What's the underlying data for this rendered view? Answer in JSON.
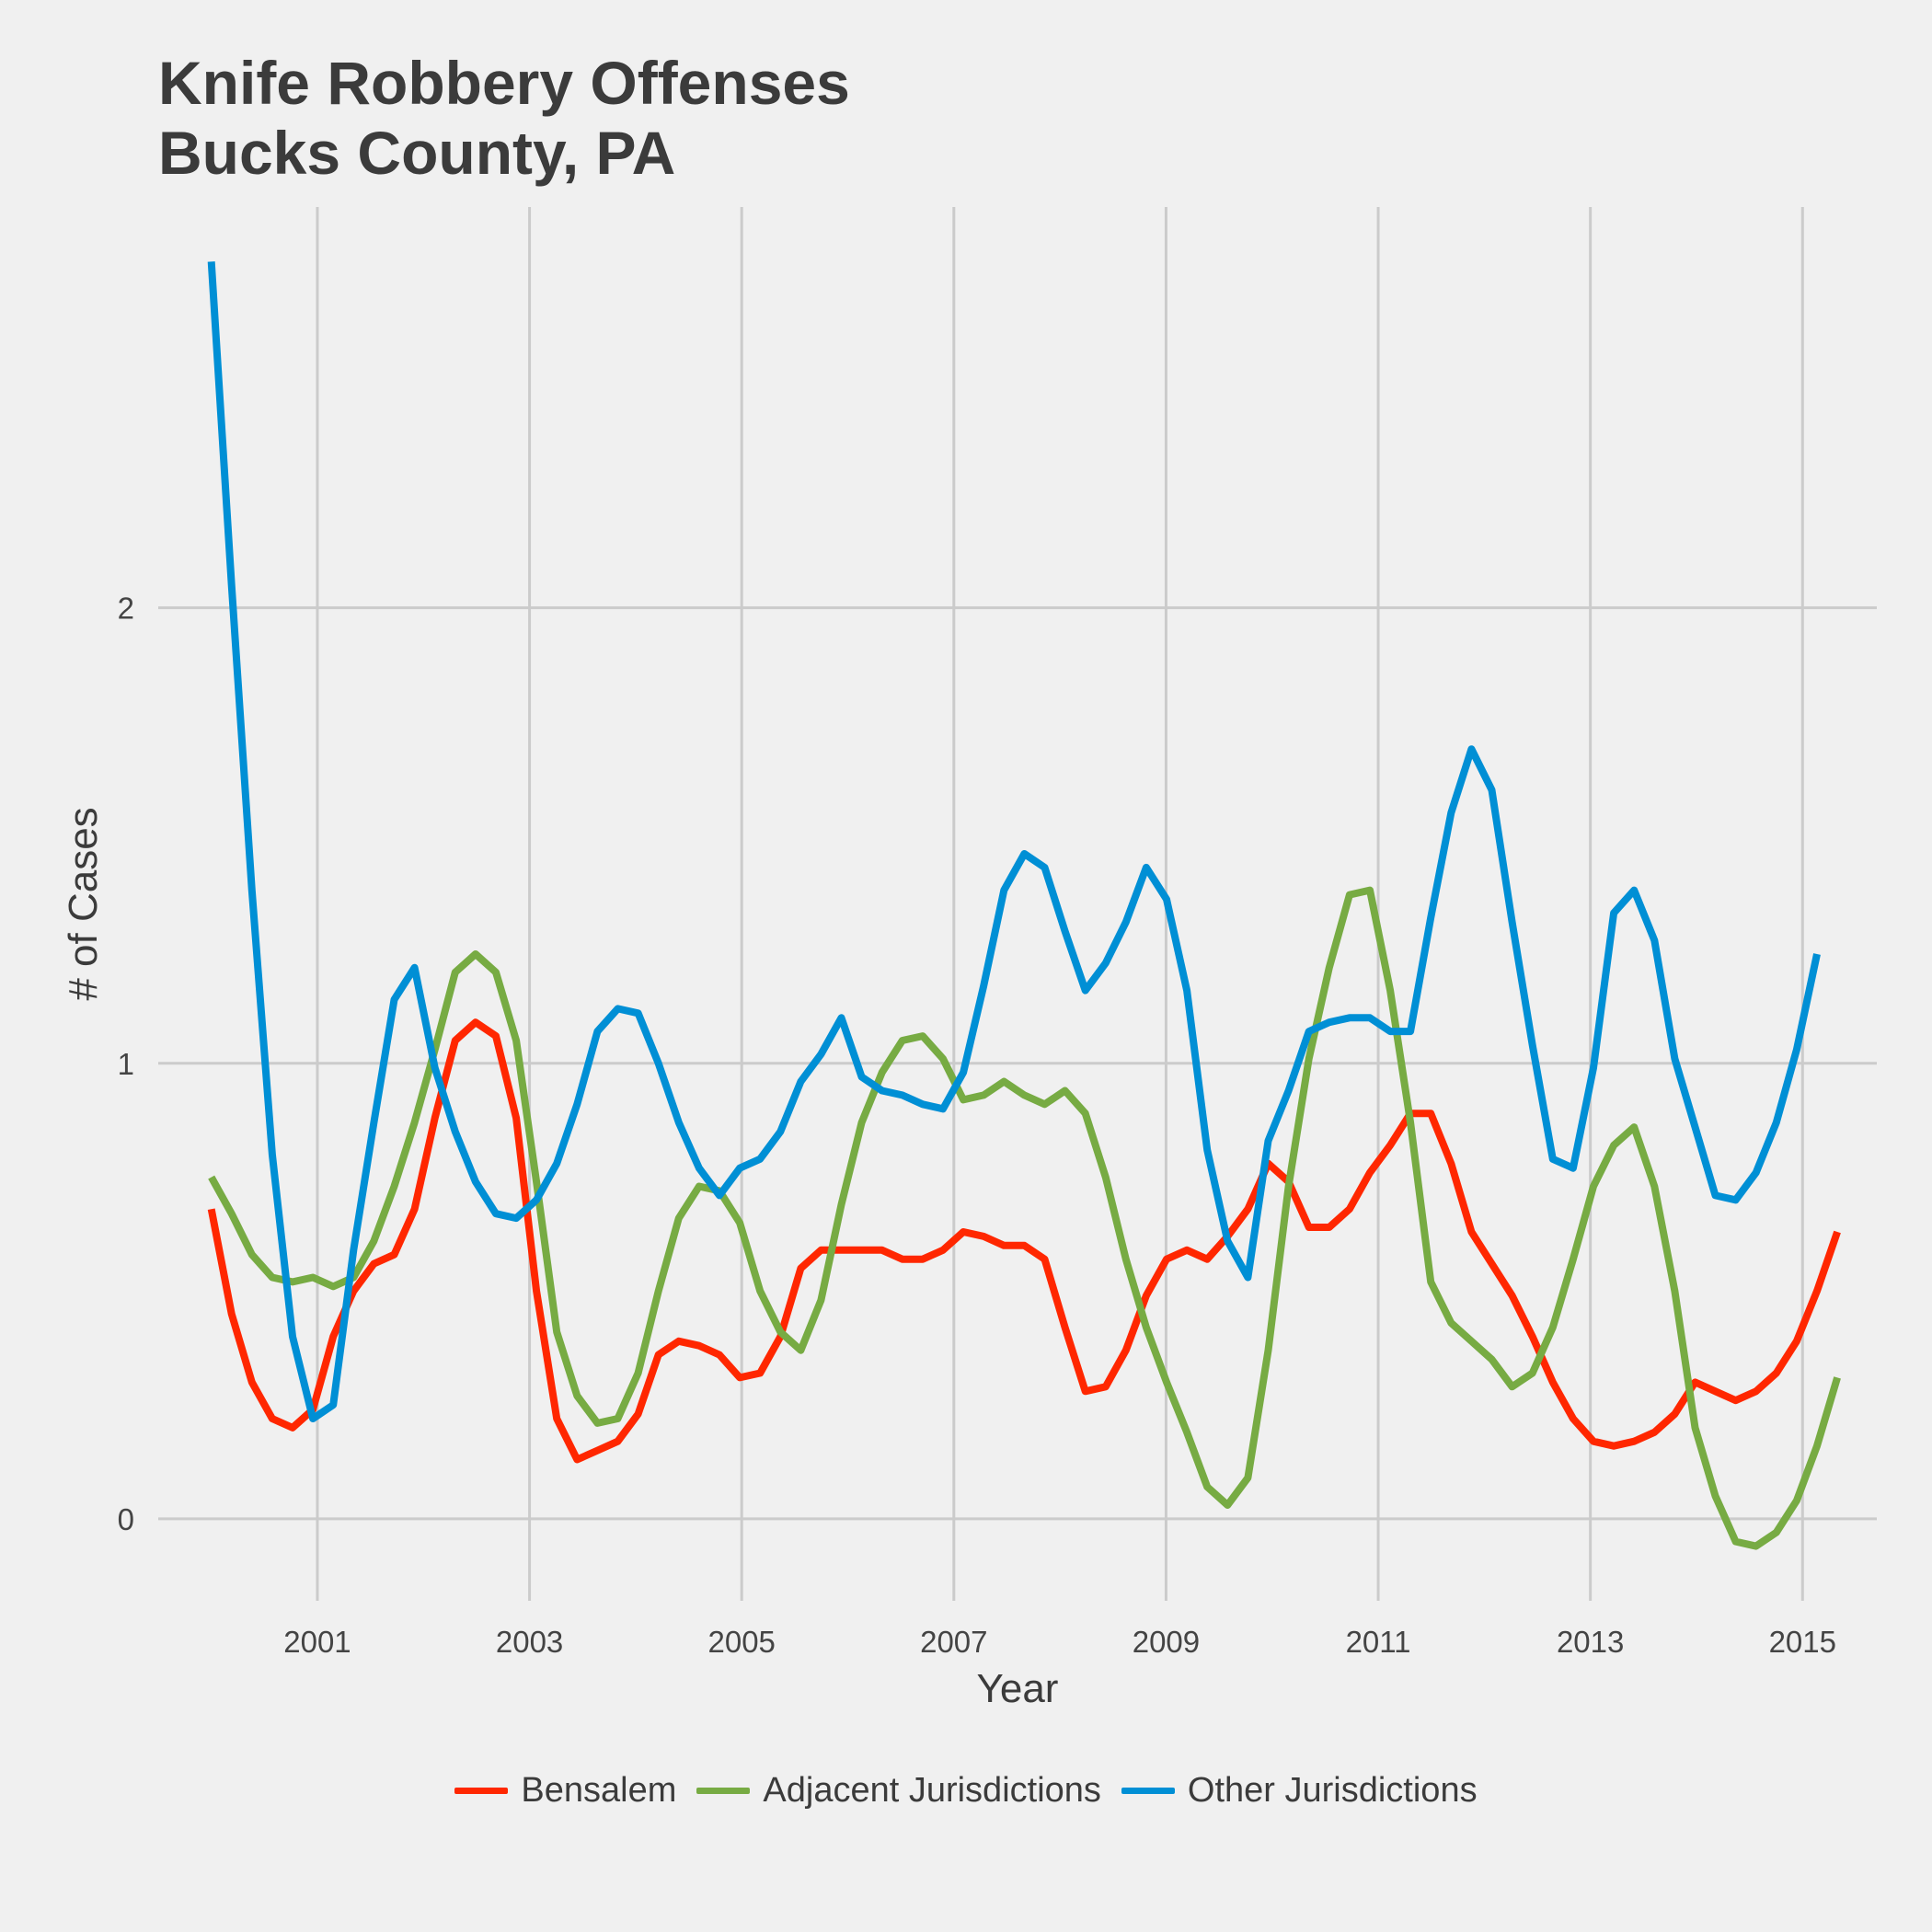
{
  "chart_data": {
    "type": "line",
    "title_lines": [
      "Knife Robbery Offenses",
      "Bucks County, PA"
    ],
    "xlabel": "Year",
    "ylabel": "# of Cases",
    "xlim": [
      1999.5,
      2015.7
    ],
    "ylim": [
      -0.18,
      2.88
    ],
    "x_ticks": [
      2001,
      2003,
      2005,
      2007,
      2009,
      2011,
      2013,
      2015
    ],
    "y_ticks": [
      0,
      1,
      2
    ],
    "grid": true,
    "legend_position": "bottom",
    "x_start": 2000.0,
    "x_step": 0.1916,
    "series": [
      {
        "name": "Bensalem",
        "color": "#ff2700",
        "values": [
          0.68,
          0.45,
          0.3,
          0.22,
          0.2,
          0.24,
          0.4,
          0.5,
          0.56,
          0.58,
          0.68,
          0.88,
          1.05,
          1.09,
          1.06,
          0.88,
          0.5,
          0.22,
          0.13,
          0.15,
          0.17,
          0.23,
          0.36,
          0.39,
          0.38,
          0.36,
          0.31,
          0.32,
          0.4,
          0.55,
          0.59,
          0.59,
          0.59,
          0.59,
          0.57,
          0.57,
          0.59,
          0.63,
          0.62,
          0.6,
          0.6,
          0.57,
          0.42,
          0.28,
          0.29,
          0.37,
          0.49,
          0.57,
          0.59,
          0.57,
          0.62,
          0.68,
          0.78,
          0.74,
          0.64,
          0.64,
          0.68,
          0.76,
          0.82,
          0.89,
          0.89,
          0.78,
          0.63,
          0.56,
          0.49,
          0.4,
          0.3,
          0.22,
          0.17,
          0.16,
          0.17,
          0.19,
          0.23,
          0.3,
          0.28,
          0.26,
          0.28,
          0.32,
          0.39,
          0.5,
          0.63
        ]
      },
      {
        "name": "Adjacent Jurisdictions",
        "color": "#77ab43",
        "values": [
          0.75,
          0.67,
          0.58,
          0.53,
          0.52,
          0.53,
          0.51,
          0.53,
          0.61,
          0.73,
          0.87,
          1.03,
          1.2,
          1.24,
          1.2,
          1.05,
          0.74,
          0.41,
          0.27,
          0.21,
          0.22,
          0.32,
          0.5,
          0.66,
          0.73,
          0.72,
          0.65,
          0.5,
          0.41,
          0.37,
          0.48,
          0.69,
          0.87,
          0.98,
          1.05,
          1.06,
          1.01,
          0.92,
          0.93,
          0.96,
          0.93,
          0.91,
          0.94,
          0.89,
          0.75,
          0.57,
          0.42,
          0.3,
          0.19,
          0.07,
          0.03,
          0.09,
          0.37,
          0.73,
          1.01,
          1.21,
          1.37,
          1.38,
          1.16,
          0.87,
          0.52,
          0.43,
          0.39,
          0.35,
          0.29,
          0.32,
          0.42,
          0.57,
          0.73,
          0.82,
          0.86,
          0.73,
          0.5,
          0.2,
          0.05,
          -0.05,
          -0.06,
          -0.03,
          0.04,
          0.16,
          0.31
        ]
      },
      {
        "name": "Other Jurisdictions",
        "color": "#008fd5",
        "values": [
          2.76,
          2.05,
          1.38,
          0.8,
          0.4,
          0.22,
          0.25,
          0.59,
          0.87,
          1.14,
          1.21,
          0.99,
          0.85,
          0.74,
          0.67,
          0.66,
          0.7,
          0.78,
          0.91,
          1.07,
          1.12,
          1.11,
          1.0,
          0.87,
          0.77,
          0.71,
          0.77,
          0.79,
          0.85,
          0.96,
          1.02,
          1.1,
          0.97,
          0.94,
          0.93,
          0.91,
          0.9,
          0.98,
          1.17,
          1.38,
          1.46,
          1.43,
          1.29,
          1.16,
          1.22,
          1.31,
          1.43,
          1.36,
          1.16,
          0.81,
          0.61,
          0.53,
          0.83,
          0.94,
          1.07,
          1.09,
          1.1,
          1.1,
          1.07,
          1.07,
          1.32,
          1.55,
          1.69,
          1.6,
          1.31,
          1.04,
          0.79,
          0.77,
          0.99,
          1.33,
          1.38,
          1.27,
          1.01,
          0.86,
          0.71,
          0.7,
          0.76,
          0.87,
          1.03,
          1.24
        ]
      }
    ]
  }
}
